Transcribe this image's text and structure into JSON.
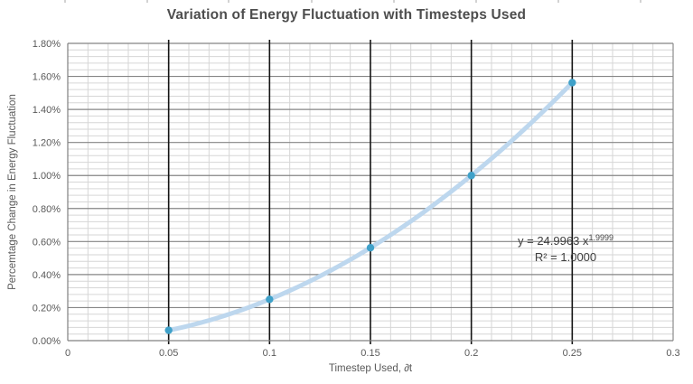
{
  "title": "Variation of Energy Fluctuation with Timesteps Used",
  "chart_data": {
    "type": "scatter",
    "title": "Variation of Energy Fluctuation with Timesteps Used",
    "xlabel": "Timestep Used, ∂t",
    "ylabel": "Percemtage Change in Energy Fluctuation",
    "x": [
      0.05,
      0.1,
      0.15,
      0.2,
      0.25
    ],
    "y_percent": [
      0.0625,
      0.25,
      0.5625,
      1.0,
      1.5625
    ],
    "xlim": [
      0,
      0.3
    ],
    "ylim_percent": [
      0,
      1.8
    ],
    "x_tick_values": [
      0,
      0.05,
      0.1,
      0.15,
      0.2,
      0.25,
      0.3
    ],
    "x_tick_labels": [
      "0",
      "0.05",
      "0.1",
      "0.15",
      "0.2",
      "0.25",
      "0.3"
    ],
    "y_tick_values": [
      0,
      0.2,
      0.4,
      0.6,
      0.8,
      1.0,
      1.2,
      1.4,
      1.6,
      1.8
    ],
    "y_tick_labels": [
      "0.00%",
      "0.20%",
      "0.40%",
      "0.60%",
      "0.80%",
      "1.00%",
      "1.20%",
      "1.40%",
      "1.60%",
      "1.80%"
    ],
    "x_minor_step": 0.01,
    "y_minor_step_percent": 0.04,
    "grid": "major-and-minor",
    "legend": "none",
    "trendline": {
      "type": "power",
      "coef": 24.9963,
      "exp": 1.9999,
      "equation_base": "y = 24.9963 x",
      "equation_exponent": "1.9999",
      "r_squared_label": "R² = 1.0000",
      "domain": [
        0.05,
        0.25
      ]
    },
    "colors": {
      "marker": "#3fa1c9",
      "trendline": "#bdd7ee",
      "major_h_grid": "#858585",
      "major_v_grid": "#141414",
      "minor_grid": "#d6d6d6",
      "axis": "#808080",
      "plot_border": "#8c8c8c",
      "tick_text": "#595959",
      "equation_text": "#404040",
      "top_marks": "#b3b3b3"
    }
  }
}
